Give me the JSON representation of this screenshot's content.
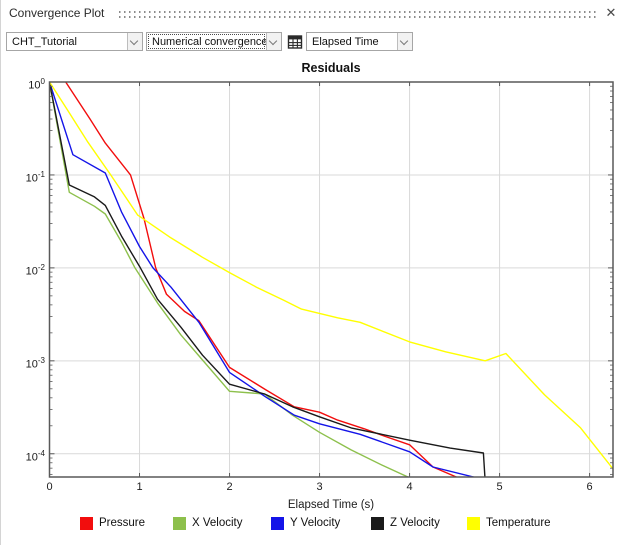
{
  "window": {
    "title": "Convergence Plot",
    "close_icon": "✕"
  },
  "toolbar": {
    "simulation_value": "CHT_Tutorial",
    "plot_type_value": "Numerical convergence",
    "x_axis_value": "Elapsed Time"
  },
  "chart_data": {
    "type": "line",
    "title": "Residuals",
    "xlabel": "Elapsed Time (s)",
    "ylabel": "",
    "y_scale": "log10",
    "grid": true,
    "legend_position": "bottom",
    "x_ticks": [
      0,
      1,
      2,
      3,
      4,
      5,
      6
    ],
    "y_tick_exponents": [
      0,
      -1,
      -2,
      -3,
      -4
    ],
    "xlim": [
      0,
      6.26
    ],
    "ylim_exponents": [
      0,
      -4.25
    ],
    "grid_color": "#d9d9d9",
    "axis_color": "#595959",
    "series": [
      {
        "name": "Pressure",
        "color": "#f20d0d",
        "points": [
          [
            0.18,
            1.0
          ],
          [
            0.45,
            0.4
          ],
          [
            0.62,
            0.22
          ],
          [
            0.9,
            0.1
          ],
          [
            1.05,
            0.034
          ],
          [
            1.18,
            0.01
          ],
          [
            1.3,
            0.0052
          ],
          [
            1.5,
            0.0034
          ],
          [
            1.66,
            0.0027
          ],
          [
            2.0,
            0.00085
          ],
          [
            2.4,
            0.00049
          ],
          [
            2.72,
            0.00032
          ],
          [
            3.0,
            0.00028
          ],
          [
            3.2,
            0.00023
          ],
          [
            3.5,
            0.000185
          ],
          [
            3.72,
            0.000155
          ],
          [
            4.0,
            0.000125
          ],
          [
            4.26,
            7.2e-05
          ],
          [
            4.56,
            5.4e-05
          ]
        ]
      },
      {
        "name": "X Velocity",
        "color": "#8dc04c",
        "points": [
          [
            0,
            1.0
          ],
          [
            0.22,
            0.065
          ],
          [
            0.5,
            0.046
          ],
          [
            0.62,
            0.038
          ],
          [
            0.8,
            0.019
          ],
          [
            0.95,
            0.01
          ],
          [
            1.2,
            0.0042
          ],
          [
            1.46,
            0.0019
          ],
          [
            1.7,
            0.00102
          ],
          [
            2.0,
            0.00047
          ],
          [
            2.39,
            0.00044
          ],
          [
            2.7,
            0.00026
          ],
          [
            3.0,
            0.00017
          ],
          [
            3.35,
            0.00011
          ],
          [
            3.7,
            7.5e-05
          ],
          [
            4.02,
            5.4e-05
          ]
        ]
      },
      {
        "name": "Y Velocity",
        "color": "#1414e8",
        "points": [
          [
            0,
            1.0
          ],
          [
            0.26,
            0.165
          ],
          [
            0.62,
            0.105
          ],
          [
            0.8,
            0.04
          ],
          [
            1.0,
            0.017
          ],
          [
            1.15,
            0.01
          ],
          [
            1.35,
            0.0062
          ],
          [
            1.66,
            0.0026
          ],
          [
            2.0,
            0.00075
          ],
          [
            2.4,
            0.00041
          ],
          [
            2.72,
            0.00026
          ],
          [
            3.0,
            0.00021
          ],
          [
            3.45,
            0.000162
          ],
          [
            4.0,
            0.000105
          ],
          [
            4.26,
            7.2e-05
          ],
          [
            4.78,
            5.4e-05
          ]
        ]
      },
      {
        "name": "Z Velocity",
        "color": "#1a1a1a",
        "points": [
          [
            0,
            1.0
          ],
          [
            0.22,
            0.078
          ],
          [
            0.5,
            0.058
          ],
          [
            0.62,
            0.047
          ],
          [
            0.8,
            0.022
          ],
          [
            1.01,
            0.01
          ],
          [
            1.2,
            0.0046
          ],
          [
            1.46,
            0.0023
          ],
          [
            1.7,
            0.00115
          ],
          [
            2.0,
            0.00056
          ],
          [
            2.39,
            0.00044
          ],
          [
            2.7,
            0.00032
          ],
          [
            3.0,
            0.00025
          ],
          [
            3.35,
            0.00019
          ],
          [
            4.0,
            0.00014
          ],
          [
            4.45,
            0.000115
          ],
          [
            4.82,
            0.000102
          ],
          [
            4.84,
            5e-05
          ]
        ]
      },
      {
        "name": "Temperature",
        "color": "#ffff00",
        "points": [
          [
            0,
            1.0
          ],
          [
            0.2,
            0.5
          ],
          [
            0.42,
            0.23
          ],
          [
            0.68,
            0.1
          ],
          [
            0.98,
            0.037
          ],
          [
            1.35,
            0.021
          ],
          [
            1.7,
            0.013
          ],
          [
            2.0,
            0.0089
          ],
          [
            2.3,
            0.0062
          ],
          [
            2.6,
            0.0045
          ],
          [
            2.8,
            0.0036
          ],
          [
            3.2,
            0.0029
          ],
          [
            3.45,
            0.0026
          ],
          [
            4.0,
            0.0016
          ],
          [
            4.4,
            0.00125
          ],
          [
            4.84,
            0.001
          ],
          [
            5.07,
            0.0012
          ],
          [
            5.5,
            0.00043
          ],
          [
            5.9,
            0.00019
          ],
          [
            6.28,
            6.5e-05
          ]
        ]
      }
    ]
  }
}
